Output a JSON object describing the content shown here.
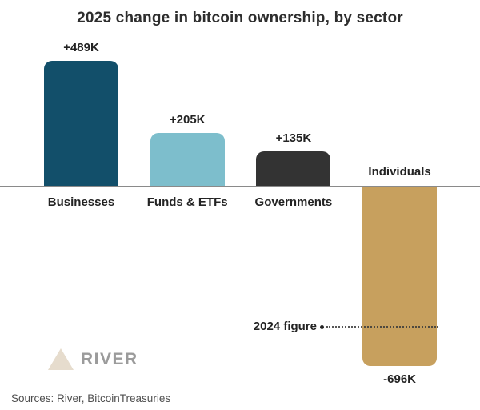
{
  "title": "2025 change in bitcoin ownership, by sector",
  "source_note": "Sources: River, BitcoinTreasuries",
  "logo": {
    "text": "RIVER",
    "mark": "mountain-triangle-icon",
    "mark_color": "#e6dccd",
    "text_color": "#9b9b9b"
  },
  "annotation": {
    "label": "2024 figure"
  },
  "chart_data": {
    "type": "bar",
    "title": "2025 change in bitcoin ownership, by sector",
    "categories": [
      "Businesses",
      "Funds & ETFs",
      "Governments",
      "Individuals"
    ],
    "values": [
      489,
      205,
      135,
      -696
    ],
    "value_labels": [
      "+489K",
      "+205K",
      "+135K",
      "-696K"
    ],
    "unit": "K",
    "baseline": 0,
    "ylim": [
      -750,
      550
    ],
    "grid": false,
    "legend": "none",
    "bar_colors": [
      "#124f6a",
      "#7dbecc",
      "#333333",
      "#c7a05e"
    ],
    "axis_line_color": "#8a8a8a",
    "annotations": [
      {
        "label": "2024 figure",
        "applies_to": "Individuals",
        "value_estimate_k": -550,
        "style": "dotted-leader-line"
      }
    ]
  }
}
